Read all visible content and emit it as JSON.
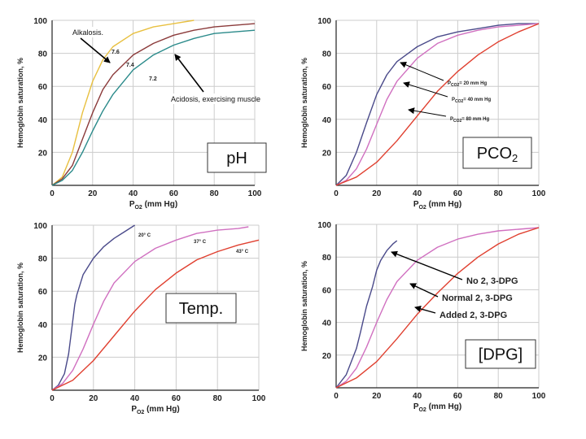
{
  "chart_data": [
    {
      "type": "line",
      "box_label": "pH",
      "ylabel": "Hemoglobin saturation, %",
      "xlabel_main": "P",
      "xlabel_sub": "O2",
      "xlabel_rest": " (mm Hg)",
      "xlim": [
        0,
        100
      ],
      "ylim": [
        0,
        100
      ],
      "xticks": [
        "0",
        "20",
        "40",
        "60",
        "80",
        "100"
      ],
      "yticks": [
        "20",
        "40",
        "60",
        "80",
        "100"
      ],
      "series": [
        {
          "name": "7.6",
          "color": "#e8c040",
          "x": [
            0,
            5,
            10,
            15,
            20,
            25,
            30,
            40,
            50,
            60,
            70
          ],
          "y": [
            0,
            5,
            20,
            44,
            63,
            76,
            84,
            92,
            96,
            98,
            100
          ]
        },
        {
          "name": "7.4",
          "color": "#8b3a3a",
          "x": [
            0,
            5,
            10,
            15,
            20,
            25,
            30,
            40,
            50,
            60,
            70,
            80,
            90,
            100
          ],
          "y": [
            0,
            4,
            12,
            28,
            44,
            58,
            67,
            79,
            86,
            91,
            94,
            96,
            97,
            98
          ]
        },
        {
          "name": "7.2",
          "color": "#2a8a8a",
          "x": [
            0,
            5,
            10,
            15,
            20,
            25,
            30,
            40,
            50,
            60,
            70,
            80,
            90,
            100
          ],
          "y": [
            0,
            3,
            9,
            20,
            33,
            45,
            55,
            70,
            79,
            85,
            89,
            92,
            93,
            94
          ]
        }
      ],
      "annotations": {
        "alkalosis": "Alkalosis.",
        "acidosis": "Acidosis, exercising muscle"
      }
    },
    {
      "type": "line",
      "box_label": "PCO",
      "box_label_sub": "2",
      "ylabel": "Hemoglobin saturation, %",
      "xlabel_main": "P",
      "xlabel_sub": "O2",
      "xlabel_rest": " (mm Hg)",
      "xlim": [
        0,
        100
      ],
      "ylim": [
        0,
        100
      ],
      "xticks": [
        "0",
        "20",
        "40",
        "60",
        "80",
        "100"
      ],
      "yticks": [
        "20",
        "40",
        "60",
        "80",
        "100"
      ],
      "series": [
        {
          "name": "= 20 mm Hg",
          "color": "#4a4a8a",
          "x": [
            0,
            5,
            10,
            15,
            20,
            25,
            30,
            40,
            50,
            60,
            70,
            80,
            90,
            100
          ],
          "y": [
            0,
            6,
            20,
            38,
            55,
            67,
            75,
            84,
            90,
            93,
            95,
            97,
            98,
            98
          ]
        },
        {
          "name": "= 40 mm Hg",
          "color": "#d070c0",
          "x": [
            0,
            5,
            10,
            15,
            20,
            25,
            30,
            40,
            50,
            60,
            70,
            80,
            90,
            100
          ],
          "y": [
            0,
            3,
            10,
            22,
            37,
            52,
            63,
            77,
            86,
            91,
            94,
            96,
            97,
            98
          ]
        },
        {
          "name": "= 80 mm Hg",
          "color": "#e04030",
          "x": [
            0,
            10,
            20,
            30,
            40,
            50,
            60,
            70,
            80,
            90,
            100
          ],
          "y": [
            0,
            5,
            14,
            27,
            42,
            57,
            69,
            79,
            87,
            93,
            98
          ]
        }
      ],
      "legend_prefix_main": "P",
      "legend_prefix_sub": "CO2"
    },
    {
      "type": "line",
      "box_label": "Temp.",
      "ylabel": "Hemoglobin saturation, %",
      "xlabel_main": "P",
      "xlabel_sub": "O2",
      "xlabel_rest": " (mm Hg)",
      "xlim": [
        0,
        100
      ],
      "ylim": [
        0,
        100
      ],
      "xticks": [
        "0",
        "20",
        "40",
        "60",
        "80",
        "100"
      ],
      "yticks": [
        "20",
        "40",
        "60",
        "80",
        "100"
      ],
      "series": [
        {
          "name": "20° C",
          "color": "#4a4a8a",
          "x": [
            0,
            3,
            6,
            8,
            10,
            11,
            12,
            15,
            20,
            25,
            30,
            35,
            40
          ],
          "y": [
            0,
            3,
            10,
            22,
            42,
            52,
            58,
            70,
            80,
            87,
            92,
            96,
            100
          ]
        },
        {
          "name": "37° C",
          "color": "#d070c0",
          "x": [
            0,
            5,
            10,
            15,
            20,
            25,
            30,
            40,
            50,
            60,
            70,
            80,
            90,
            95
          ],
          "y": [
            0,
            4,
            12,
            25,
            40,
            54,
            65,
            78,
            86,
            91,
            95,
            97,
            98,
            99
          ]
        },
        {
          "name": "43° C",
          "color": "#e04030",
          "x": [
            0,
            10,
            20,
            30,
            40,
            50,
            60,
            70,
            80,
            90,
            100
          ],
          "y": [
            0,
            6,
            18,
            33,
            48,
            61,
            71,
            79,
            84,
            88,
            91
          ]
        }
      ]
    },
    {
      "type": "line",
      "box_label": "[DPG]",
      "ylabel": "Hemoglobin saturation, %",
      "xlabel_main": "P",
      "xlabel_sub": "O2",
      "xlabel_rest": " (mm Hg)",
      "xlim": [
        0,
        100
      ],
      "ylim": [
        0,
        100
      ],
      "xticks": [
        "0",
        "20",
        "40",
        "60",
        "80",
        "100"
      ],
      "yticks": [
        "20",
        "40",
        "60",
        "80",
        "100"
      ],
      "series": [
        {
          "name": "No 2, 3-DPG",
          "color": "#4a4a8a",
          "x": [
            0,
            5,
            10,
            12,
            15,
            18,
            20,
            22,
            25,
            28,
            30
          ],
          "y": [
            0,
            8,
            24,
            34,
            50,
            62,
            72,
            78,
            84,
            88,
            90
          ]
        },
        {
          "name": "Normal 2, 3-DPG",
          "color": "#d070c0",
          "x": [
            0,
            5,
            10,
            15,
            20,
            25,
            30,
            40,
            50,
            60,
            70,
            80,
            90,
            100
          ],
          "y": [
            0,
            4,
            12,
            25,
            40,
            54,
            65,
            78,
            86,
            91,
            94,
            96,
            97,
            98
          ]
        },
        {
          "name": "Added 2, 3-DPG",
          "color": "#e04030",
          "x": [
            0,
            10,
            20,
            30,
            40,
            50,
            60,
            70,
            80,
            90,
            100
          ],
          "y": [
            0,
            6,
            16,
            30,
            45,
            58,
            70,
            80,
            88,
            94,
            98
          ]
        }
      ]
    }
  ]
}
